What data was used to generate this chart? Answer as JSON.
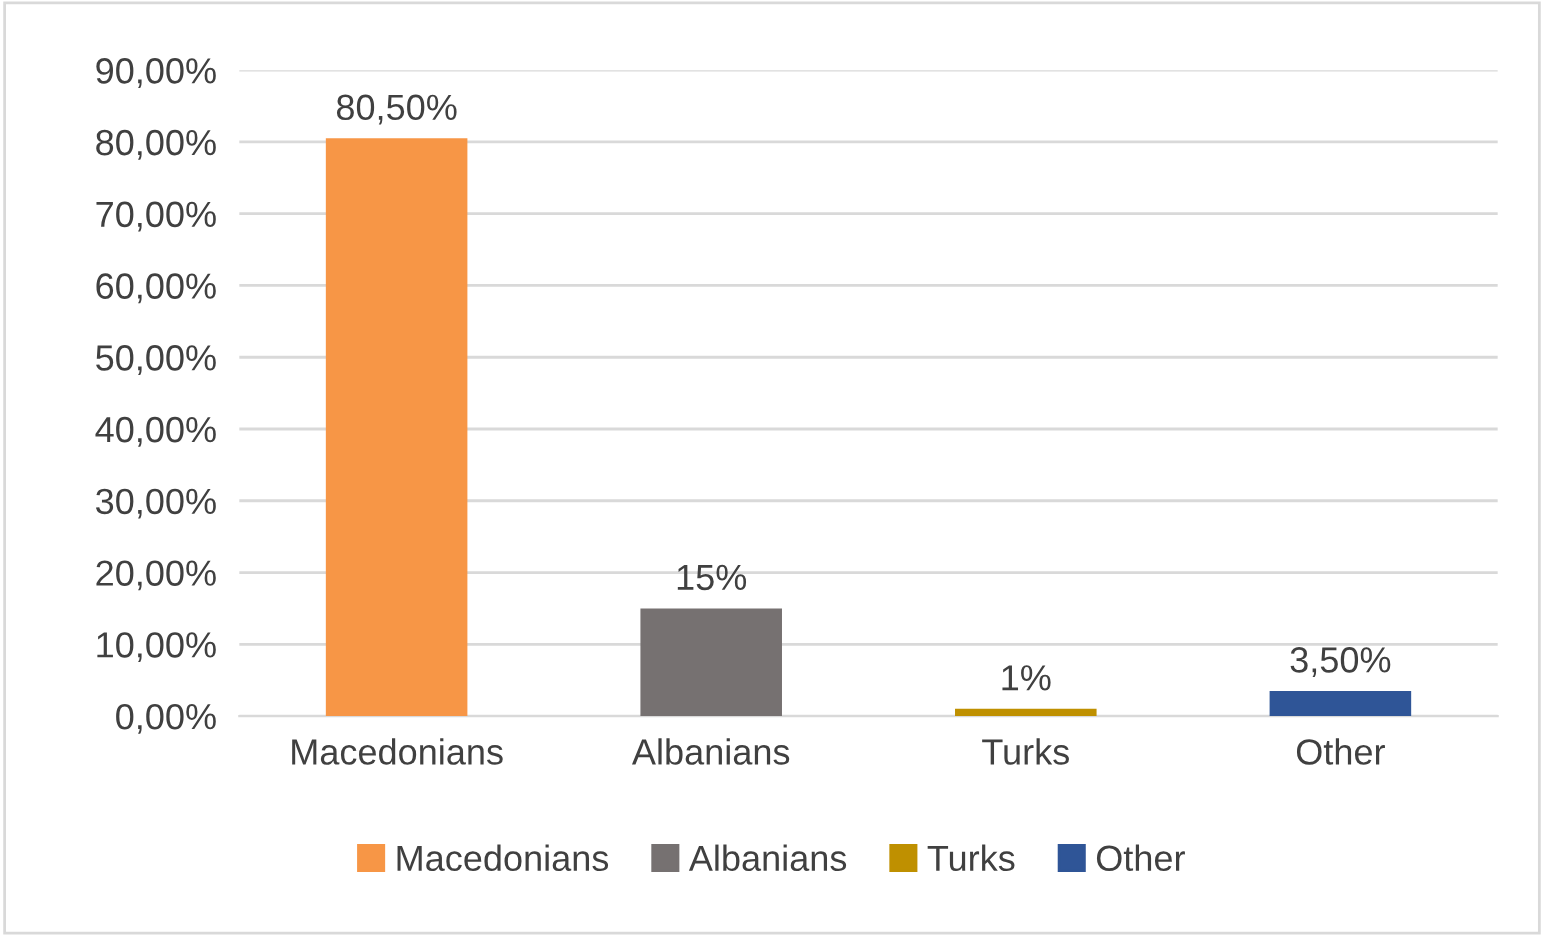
{
  "chart_data": {
    "type": "bar",
    "categories": [
      "Macedonians",
      "Albanians",
      "Turks",
      "Other"
    ],
    "series": [
      {
        "name": "Macedonians",
        "color": "#f79646",
        "values": [
          80.5,
          null,
          null,
          null
        ],
        "value_labels": [
          "80,50%",
          null,
          null,
          null
        ]
      },
      {
        "name": "Albanians",
        "color": "#767171",
        "values": [
          null,
          15,
          null,
          null
        ],
        "value_labels": [
          null,
          "15%",
          null,
          null
        ]
      },
      {
        "name": "Turks",
        "color": "#bf9000",
        "values": [
          null,
          null,
          1,
          null
        ],
        "value_labels": [
          null,
          null,
          "1%",
          null
        ]
      },
      {
        "name": "Other",
        "color": "#2f5597",
        "values": [
          null,
          null,
          null,
          3.5
        ],
        "value_labels": [
          null,
          null,
          null,
          "3,50%"
        ]
      }
    ],
    "ylim": [
      0,
      90
    ],
    "yticks": [
      {
        "value": 0,
        "label": "0,00%"
      },
      {
        "value": 10,
        "label": "10,00%"
      },
      {
        "value": 20,
        "label": "20,00%"
      },
      {
        "value": 30,
        "label": "30,00%"
      },
      {
        "value": 40,
        "label": "40,00%"
      },
      {
        "value": 50,
        "label": "50,00%"
      },
      {
        "value": 60,
        "label": "60,00%"
      },
      {
        "value": 70,
        "label": "70,00%"
      },
      {
        "value": 80,
        "label": "80,00%"
      },
      {
        "value": 90,
        "label": "90,00%"
      }
    ],
    "grid": "y",
    "legend": "bottom"
  }
}
